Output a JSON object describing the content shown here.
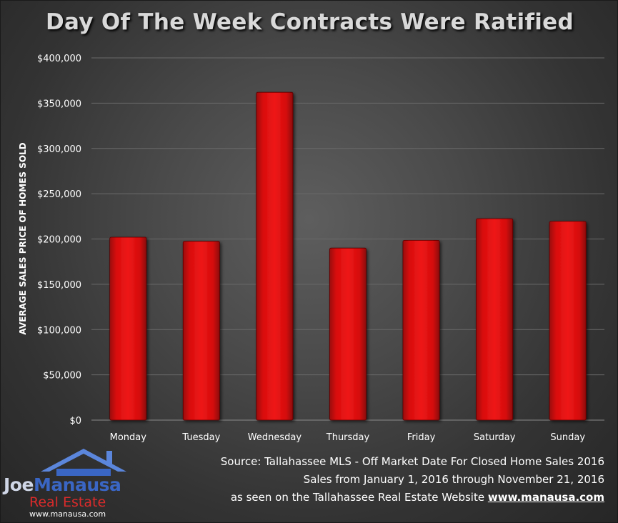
{
  "chart_data": {
    "type": "bar",
    "title": "Day Of The Week Contracts Were Ratified",
    "xlabel": "",
    "ylabel": "AVERAGE SALES PRICE OF HOMES SOLD",
    "categories": [
      "Monday",
      "Tuesday",
      "Wednesday",
      "Thursday",
      "Friday",
      "Saturday",
      "Sunday"
    ],
    "values": [
      202000,
      197500,
      362000,
      190000,
      198500,
      222500,
      219500
    ],
    "ylim": [
      0,
      400000
    ],
    "yticks": [
      0,
      50000,
      100000,
      150000,
      200000,
      250000,
      300000,
      350000,
      400000
    ],
    "ytick_labels": [
      "$0",
      "$50,000",
      "$100,000",
      "$150,000",
      "$200,000",
      "$250,000",
      "$300,000",
      "$350,000",
      "$400,000"
    ],
    "grid": true,
    "legend": "none",
    "bar_color": "#e01010"
  },
  "source": {
    "line1": "Source: Tallahassee MLS - Off Market Date For Closed Home Sales 2016",
    "line2": "Sales from January 1, 2016 through November 21, 2016",
    "line3_prefix": "as seen on the Tallahassee Real Estate Website",
    "line3_url": "www.manausa.com"
  },
  "logo": {
    "name_first": "Joe",
    "name_last": "Manausa",
    "subtitle": "Real Estate",
    "url": "www.manausa.com",
    "icon": "house-icon"
  },
  "colors": {
    "background": "#3c3c3c",
    "bar": "#e01010",
    "text": "#ffffff",
    "title": "#d9d9d9",
    "grid": "#6a6a6a",
    "logo_blue": "#3a66c4",
    "logo_red": "#d92b2b"
  }
}
